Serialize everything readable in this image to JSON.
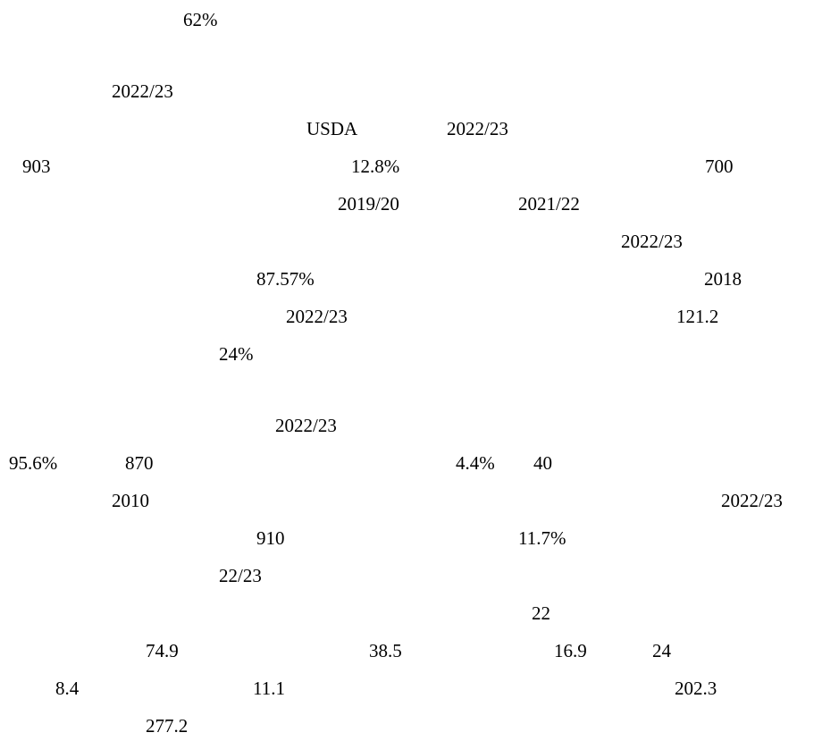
{
  "lines": [
    [
      "62%"
    ],
    [
      "2022/23"
    ],
    [
      "USDA",
      "2022/23"
    ],
    [
      "903",
      "12.8%",
      "700"
    ],
    [
      "2019/20",
      "2021/22"
    ],
    [
      "2022/23"
    ],
    [
      "87.57%",
      "2018"
    ],
    [
      "2022/23",
      "121.2"
    ],
    [
      "24%"
    ],
    [
      "2022/23"
    ],
    [
      "95.6%",
      "870",
      "4.4%",
      "40"
    ],
    [
      "2010",
      "2022/23"
    ],
    [
      "910",
      "11.7%"
    ],
    [
      "22/23"
    ],
    [
      "22"
    ],
    [
      "74.9",
      "38.5",
      "16.9",
      "24"
    ],
    [
      "8.4",
      "11.1",
      "202.3"
    ],
    [
      "277.2"
    ]
  ]
}
